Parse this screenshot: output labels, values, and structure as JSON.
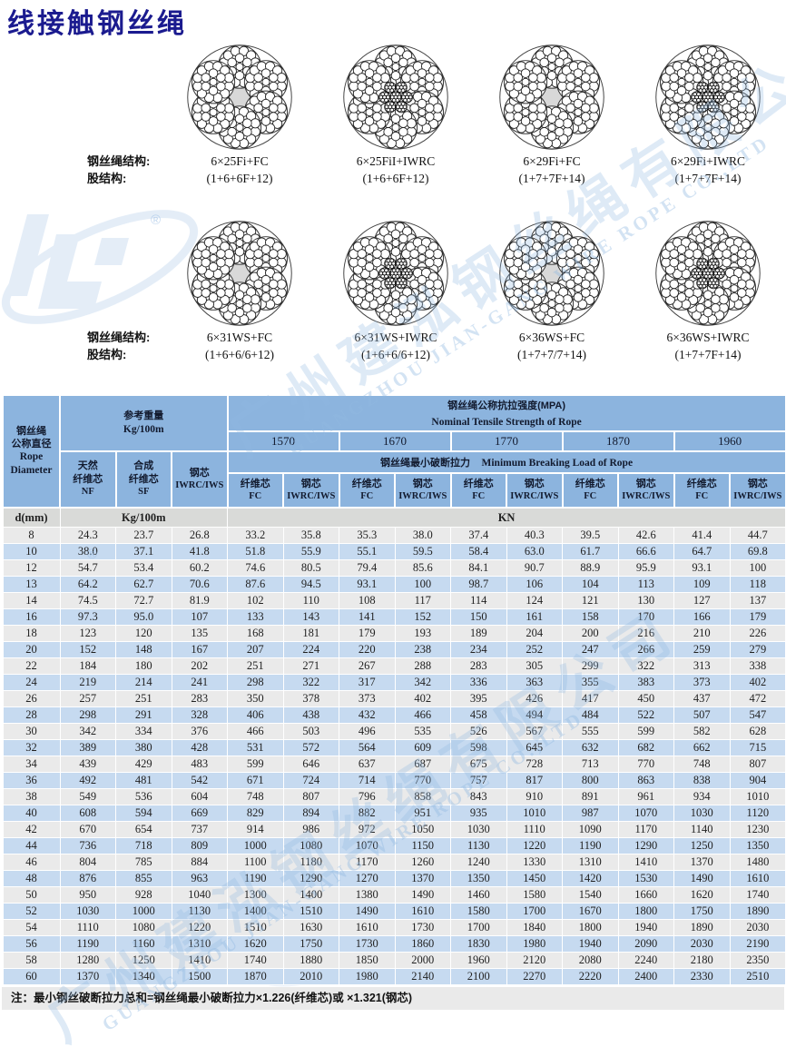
{
  "page": {
    "title": "线接触钢丝绳",
    "note": "注：最小钢丝破断拉力总和=钢丝绳最小破断拉力×1.226(纤维芯)或 ×1.321(钢芯)"
  },
  "colors": {
    "title_navy": "#1b1b8f",
    "header_blue": "#8cb4de",
    "row_blue": "#c6daf0",
    "row_gray": "#eaeaea",
    "unit_row_gray": "#d9dad8",
    "watermark_blue": "#92b8e2"
  },
  "watermark": {
    "company_cn": "广州建泓钢丝绳有限公司",
    "company_en": "GUANGZHOU JIAN-GANG WIRE ROPE CO.,LTD",
    "registered": "®"
  },
  "diagrams": {
    "structure_label": "钢丝绳结构:",
    "strand_label": "股结构:",
    "rows": [
      {
        "items": [
          {
            "structure": "6×25Fi+FC",
            "strand": "(1+6+6F+12)",
            "core": "FC"
          },
          {
            "structure": "6×25FiI+IWRC",
            "strand": "(1+6+6F+12)",
            "core": "IWRC"
          },
          {
            "structure": "6×29Fi+FC",
            "strand": "(1+7+7F+14)",
            "core": "FC"
          },
          {
            "structure": "6×29Fi+IWRC",
            "strand": "(1+7+7F+14)",
            "core": "IWRC"
          }
        ]
      },
      {
        "items": [
          {
            "structure": "6×31WS+FC",
            "strand": "(1+6+6/6+12)",
            "core": "FC"
          },
          {
            "structure": "6×31WS+IWRC",
            "strand": "(1+6+6/6+12)",
            "core": "IWRC"
          },
          {
            "structure": "6×36WS+FC",
            "strand": "(1+7+7/7+14)",
            "core": "FC"
          },
          {
            "structure": "6×36WS+IWRC",
            "strand": "(1+7+7F+14)",
            "core": "IWRC"
          }
        ]
      }
    ]
  },
  "table": {
    "header": {
      "col1_lines": [
        "钢丝绳",
        "公称直径",
        "Rope",
        "Diameter"
      ],
      "weight_title": "参考重量",
      "weight_unit": "Kg/100m",
      "weight_cols": [
        {
          "line1": "天然",
          "line2": "纤维芯",
          "code": "NF"
        },
        {
          "line1": "合成",
          "line2": "纤维芯",
          "code": "SF"
        },
        {
          "line1": "钢芯",
          "line2": "",
          "code": "IWRC/IWS"
        }
      ],
      "strength_title_cn": "钢丝绳公称抗拉强度(MPA)",
      "strength_title_en": "Nominal Tensile Strength of Rope",
      "strengths": [
        "1570",
        "1670",
        "1770",
        "1870",
        "1960"
      ],
      "breaking_title_cn": "钢丝绳最小破断拉力",
      "breaking_title_en": "Minimum Breaking Load of Rope",
      "core_cols": [
        {
          "cn": "纤维芯",
          "code": "FC"
        },
        {
          "cn": "钢芯",
          "code": "IWRC/IWS"
        }
      ],
      "unit_row": {
        "d": "d(mm)",
        "weight": "Kg/100m",
        "load": "KN"
      }
    },
    "rows": [
      [
        "8",
        "24.3",
        "23.7",
        "26.8",
        "33.2",
        "35.8",
        "35.3",
        "38.0",
        "37.4",
        "40.3",
        "39.5",
        "42.6",
        "41.4",
        "44.7"
      ],
      [
        "10",
        "38.0",
        "37.1",
        "41.8",
        "51.8",
        "55.9",
        "55.1",
        "59.5",
        "58.4",
        "63.0",
        "61.7",
        "66.6",
        "64.7",
        "69.8"
      ],
      [
        "12",
        "54.7",
        "53.4",
        "60.2",
        "74.6",
        "80.5",
        "79.4",
        "85.6",
        "84.1",
        "90.7",
        "88.9",
        "95.9",
        "93.1",
        "100"
      ],
      [
        "13",
        "64.2",
        "62.7",
        "70.6",
        "87.6",
        "94.5",
        "93.1",
        "100",
        "98.7",
        "106",
        "104",
        "113",
        "109",
        "118"
      ],
      [
        "14",
        "74.5",
        "72.7",
        "81.9",
        "102",
        "110",
        "108",
        "117",
        "114",
        "124",
        "121",
        "130",
        "127",
        "137"
      ],
      [
        "16",
        "97.3",
        "95.0",
        "107",
        "133",
        "143",
        "141",
        "152",
        "150",
        "161",
        "158",
        "170",
        "166",
        "179"
      ],
      [
        "18",
        "123",
        "120",
        "135",
        "168",
        "181",
        "179",
        "193",
        "189",
        "204",
        "200",
        "216",
        "210",
        "226"
      ],
      [
        "20",
        "152",
        "148",
        "167",
        "207",
        "224",
        "220",
        "238",
        "234",
        "252",
        "247",
        "266",
        "259",
        "279"
      ],
      [
        "22",
        "184",
        "180",
        "202",
        "251",
        "271",
        "267",
        "288",
        "283",
        "305",
        "299",
        "322",
        "313",
        "338"
      ],
      [
        "24",
        "219",
        "214",
        "241",
        "298",
        "322",
        "317",
        "342",
        "336",
        "363",
        "355",
        "383",
        "373",
        "402"
      ],
      [
        "26",
        "257",
        "251",
        "283",
        "350",
        "378",
        "373",
        "402",
        "395",
        "426",
        "417",
        "450",
        "437",
        "472"
      ],
      [
        "28",
        "298",
        "291",
        "328",
        "406",
        "438",
        "432",
        "466",
        "458",
        "494",
        "484",
        "522",
        "507",
        "547"
      ],
      [
        "30",
        "342",
        "334",
        "376",
        "466",
        "503",
        "496",
        "535",
        "526",
        "567",
        "555",
        "599",
        "582",
        "628"
      ],
      [
        "32",
        "389",
        "380",
        "428",
        "531",
        "572",
        "564",
        "609",
        "598",
        "645",
        "632",
        "682",
        "662",
        "715"
      ],
      [
        "34",
        "439",
        "429",
        "483",
        "599",
        "646",
        "637",
        "687",
        "675",
        "728",
        "713",
        "770",
        "748",
        "807"
      ],
      [
        "36",
        "492",
        "481",
        "542",
        "671",
        "724",
        "714",
        "770",
        "757",
        "817",
        "800",
        "863",
        "838",
        "904"
      ],
      [
        "38",
        "549",
        "536",
        "604",
        "748",
        "807",
        "796",
        "858",
        "843",
        "910",
        "891",
        "961",
        "934",
        "1010"
      ],
      [
        "40",
        "608",
        "594",
        "669",
        "829",
        "894",
        "882",
        "951",
        "935",
        "1010",
        "987",
        "1070",
        "1030",
        "1120"
      ],
      [
        "42",
        "670",
        "654",
        "737",
        "914",
        "986",
        "972",
        "1050",
        "1030",
        "1110",
        "1090",
        "1170",
        "1140",
        "1230"
      ],
      [
        "44",
        "736",
        "718",
        "809",
        "1000",
        "1080",
        "1070",
        "1150",
        "1130",
        "1220",
        "1190",
        "1290",
        "1250",
        "1350"
      ],
      [
        "46",
        "804",
        "785",
        "884",
        "1100",
        "1180",
        "1170",
        "1260",
        "1240",
        "1330",
        "1310",
        "1410",
        "1370",
        "1480"
      ],
      [
        "48",
        "876",
        "855",
        "963",
        "1190",
        "1290",
        "1270",
        "1370",
        "1350",
        "1450",
        "1420",
        "1530",
        "1490",
        "1610"
      ],
      [
        "50",
        "950",
        "928",
        "1040",
        "1300",
        "1400",
        "1380",
        "1490",
        "1460",
        "1580",
        "1540",
        "1660",
        "1620",
        "1740"
      ],
      [
        "52",
        "1030",
        "1000",
        "1130",
        "1400",
        "1510",
        "1490",
        "1610",
        "1580",
        "1700",
        "1670",
        "1800",
        "1750",
        "1890"
      ],
      [
        "54",
        "1110",
        "1080",
        "1220",
        "1510",
        "1630",
        "1610",
        "1730",
        "1700",
        "1840",
        "1800",
        "1940",
        "1890",
        "2030"
      ],
      [
        "56",
        "1190",
        "1160",
        "1310",
        "1620",
        "1750",
        "1730",
        "1860",
        "1830",
        "1980",
        "1940",
        "2090",
        "2030",
        "2190"
      ],
      [
        "58",
        "1280",
        "1250",
        "1410",
        "1740",
        "1880",
        "1850",
        "2000",
        "1960",
        "2120",
        "2080",
        "2240",
        "2180",
        "2350"
      ],
      [
        "60",
        "1370",
        "1340",
        "1500",
        "1870",
        "2010",
        "1980",
        "2140",
        "2100",
        "2270",
        "2220",
        "2400",
        "2330",
        "2510"
      ]
    ]
  }
}
